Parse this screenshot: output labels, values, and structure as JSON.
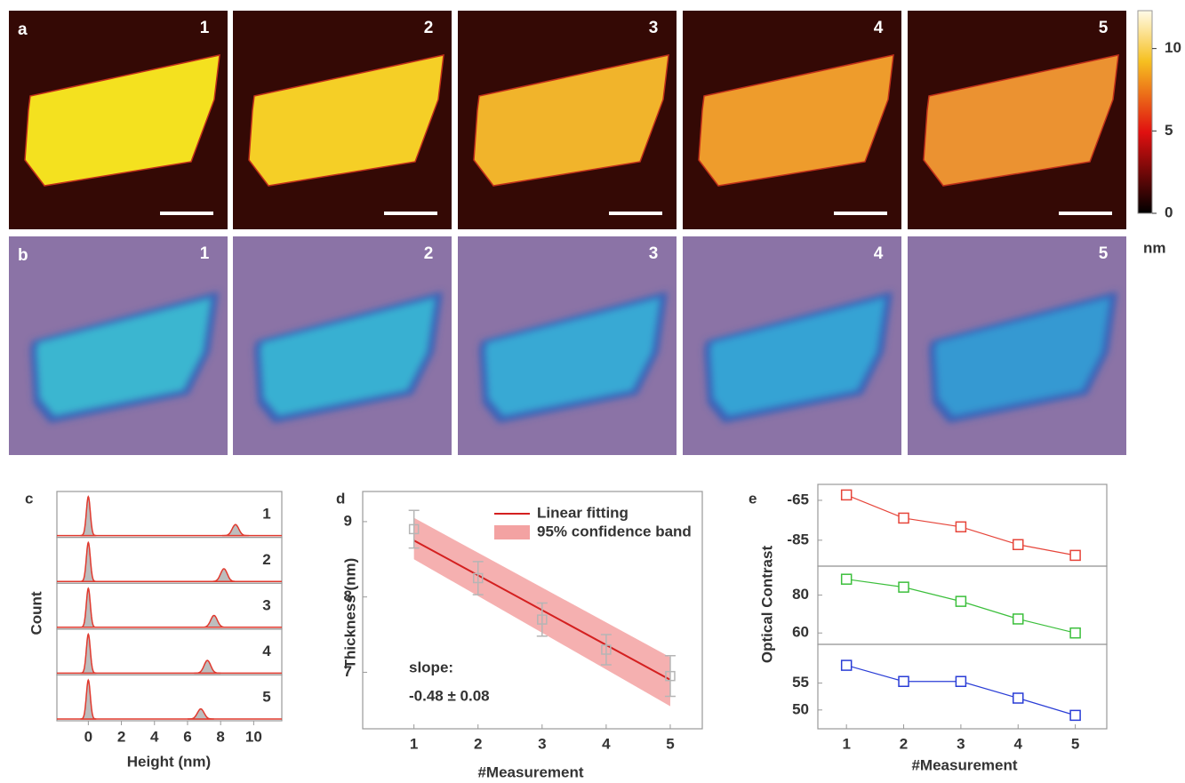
{
  "panel_a": {
    "label": "a",
    "frames": [
      "1",
      "2",
      "3",
      "4",
      "5"
    ],
    "colors": [
      "#f4e11f",
      "#f5cf26",
      "#f1b42b",
      "#ee9c2c",
      "#eb9231"
    ],
    "background": "#340905"
  },
  "panel_b": {
    "label": "b",
    "frames": [
      "1",
      "2",
      "3",
      "4",
      "5"
    ],
    "colors": [
      "#3bb6d0",
      "#39b0d2",
      "#37a9d4",
      "#36a3d4",
      "#3599d2"
    ],
    "background": "#8b73a6"
  },
  "colorbar": {
    "lim": [
      0,
      12.3
    ],
    "ticks": [
      0,
      5,
      10
    ],
    "unit": "nm"
  },
  "chart_data": [
    {
      "type": "ridge",
      "label": "c",
      "xlabel": "Height (nm)",
      "ylabel": "Count",
      "xlim": [
        -1.9,
        11.7
      ],
      "xticks": [
        0,
        2,
        4,
        6,
        8,
        10
      ],
      "series": [
        {
          "name": "1",
          "peaks": [
            0,
            8.9
          ],
          "values": [
            0.92,
            0.26
          ],
          "color": "#e03a2f"
        },
        {
          "name": "2",
          "peaks": [
            0,
            8.2
          ],
          "values": [
            0.92,
            0.3
          ],
          "color": "#e03a2f"
        },
        {
          "name": "3",
          "peaks": [
            0,
            7.6
          ],
          "values": [
            0.92,
            0.28
          ],
          "color": "#e03a2f"
        },
        {
          "name": "4",
          "peaks": [
            0,
            7.2
          ],
          "values": [
            0.92,
            0.3
          ],
          "color": "#e03a2f"
        },
        {
          "name": "5",
          "peaks": [
            0,
            6.8
          ],
          "values": [
            0.92,
            0.24
          ],
          "color": "#e03a2f"
        }
      ]
    },
    {
      "type": "fit",
      "label": "d",
      "xlabel": "#Measurement",
      "ylabel": "Thickness (nm)",
      "xlim": [
        0.2,
        5.5
      ],
      "xticks": [
        1,
        2,
        3,
        4,
        5
      ],
      "ylim": [
        6.25,
        9.4
      ],
      "yticks": [
        7,
        8,
        9
      ],
      "points": {
        "x": [
          1,
          2,
          3,
          4,
          5
        ],
        "values": [
          8.9,
          8.25,
          7.7,
          7.3,
          6.95
        ],
        "errors": [
          0.25,
          0.22,
          0.22,
          0.2,
          0.27
        ],
        "color": "#b5b5b5"
      },
      "fit": {
        "name": "Linear fitting",
        "x": [
          1,
          5
        ],
        "values": [
          8.75,
          6.9
        ],
        "color": "#d42020"
      },
      "band": {
        "name": "95% confidence band",
        "x": [
          1,
          5
        ],
        "lower": [
          8.5,
          6.55
        ],
        "upper": [
          9.05,
          7.2
        ],
        "color": "#f3a2a2"
      },
      "annotations": [
        "slope:",
        "-0.48 ± 0.08"
      ]
    },
    {
      "type": "line",
      "label": "e",
      "xlabel": "#Measurement",
      "ylabel": "Optical Contrast",
      "xlim": [
        0.5,
        5.55
      ],
      "xticks": [
        1,
        2,
        3,
        4,
        5
      ],
      "x": [
        1,
        2,
        3,
        4,
        5
      ],
      "series": [
        {
          "color": "#e6453a",
          "values": [
            -62.3,
            -73.9,
            -78.3,
            -87.2,
            -92.6
          ],
          "ylim": [
            -98,
            -57
          ],
          "yticks": [
            {
              "value": -65,
              "label": "-65"
            },
            {
              "value": -85,
              "label": "-85"
            }
          ]
        },
        {
          "color": "#3cbf3c",
          "values": [
            88.4,
            84.2,
            76.7,
            67.4,
            60
          ],
          "ylim": [
            54,
            95.3
          ],
          "yticks": [
            80,
            60
          ]
        },
        {
          "color": "#2a3dd6",
          "values": [
            58.3,
            55.3,
            55.3,
            52.2,
            49
          ],
          "ylim": [
            46.5,
            62.2
          ],
          "yticks": [
            55,
            50
          ]
        }
      ]
    }
  ]
}
